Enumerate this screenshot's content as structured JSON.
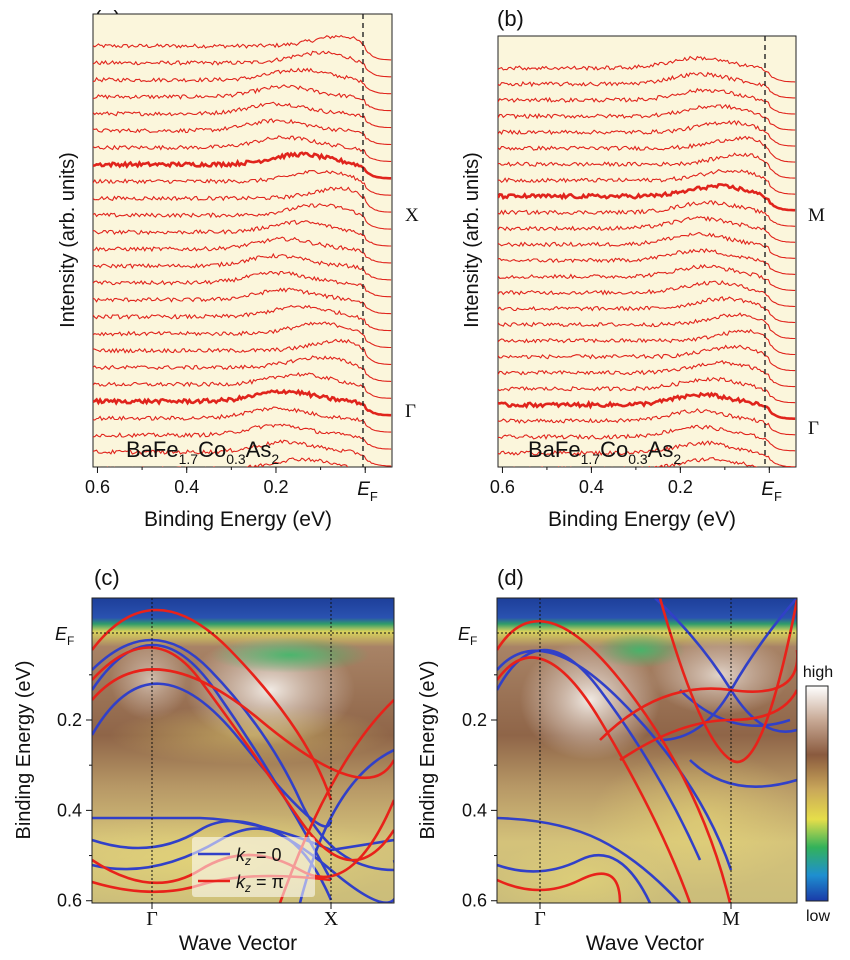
{
  "figure": {
    "colors": {
      "edc_background": "#fbf6dc",
      "edc_line": "#e0241c",
      "kz0_band": "#3140c8",
      "kzpi_band": "#e8221a"
    }
  },
  "chart_data": [
    {
      "panel_label": "(a)",
      "type": "line",
      "description_text": "BaFe1.7Co0.3As2",
      "compound": {
        "base": "BaFe",
        "s1": "1.7",
        "mid": "Co",
        "s2": "0.3",
        "end": "As",
        "s3": "2"
      },
      "xlabel": "Binding Energy (eV)",
      "ylabel": "Intensity (arb. units)",
      "x_ticks": [
        "0.6",
        "0.4",
        "0.2",
        "E",
        "F"
      ],
      "x_tick_values": [
        0.6,
        0.4,
        0.2,
        0.0
      ],
      "xlim": [
        0.61,
        -0.06
      ],
      "ef_line": 0.0,
      "num_curves": 26,
      "highlight_labels": [
        {
          "index": 7,
          "label": "X"
        },
        {
          "index": 21,
          "label": "Γ"
        }
      ],
      "grid": false
    },
    {
      "panel_label": "(b)",
      "type": "line",
      "description_text": "BaFe1.7Co0.3As2",
      "compound": {
        "base": "BaFe",
        "s1": "1.7",
        "mid": "Co",
        "s2": "0.3",
        "end": "As",
        "s3": "2"
      },
      "xlabel": "Binding Energy (eV)",
      "ylabel": "Intensity (arb. units)",
      "x_ticks": [
        "0.6",
        "0.4",
        "0.2",
        "E",
        "F"
      ],
      "x_tick_values": [
        0.6,
        0.4,
        0.2,
        0.0
      ],
      "xlim": [
        0.61,
        -0.06
      ],
      "ef_line": 0.0,
      "num_curves": 26,
      "highlight_labels": [
        {
          "index": 8,
          "label": "M"
        },
        {
          "index": 21,
          "label": "Γ"
        }
      ],
      "grid": false
    },
    {
      "panel_label": "(c)",
      "type": "heatmap",
      "xlabel": "Wave Vector",
      "ylabel": "Binding Energy (eV)",
      "y_ticks": [
        "0.2",
        "0.4",
        "0.6"
      ],
      "y_tick_values": [
        0.2,
        0.4,
        0.6
      ],
      "ef_label": {
        "E": "E",
        "F": "F"
      },
      "ylim": [
        -0.07,
        0.605
      ],
      "x_ticks": [
        "Γ",
        "X"
      ],
      "legend": [
        {
          "symbol": "k",
          "sub": "z",
          "rest": " = 0",
          "color": "#3140c8"
        },
        {
          "symbol": "k",
          "sub": "z",
          "rest": " = π",
          "color": "#e8221a"
        }
      ],
      "legend_position": "bottom-center",
      "colorscale": [
        "blue",
        "green",
        "yellow",
        "brown",
        "white"
      ]
    },
    {
      "panel_label": "(d)",
      "type": "heatmap",
      "xlabel": "Wave Vector",
      "ylabel": "Binding Energy (eV)",
      "y_ticks": [
        "0.2",
        "0.4",
        "0.6"
      ],
      "y_tick_values": [
        0.2,
        0.4,
        0.6
      ],
      "ef_label": {
        "E": "E",
        "F": "F"
      },
      "ylim": [
        -0.07,
        0.605
      ],
      "x_ticks": [
        "Γ",
        "M"
      ],
      "colorbar": {
        "high_label": "high",
        "low_label": "low"
      }
    }
  ]
}
